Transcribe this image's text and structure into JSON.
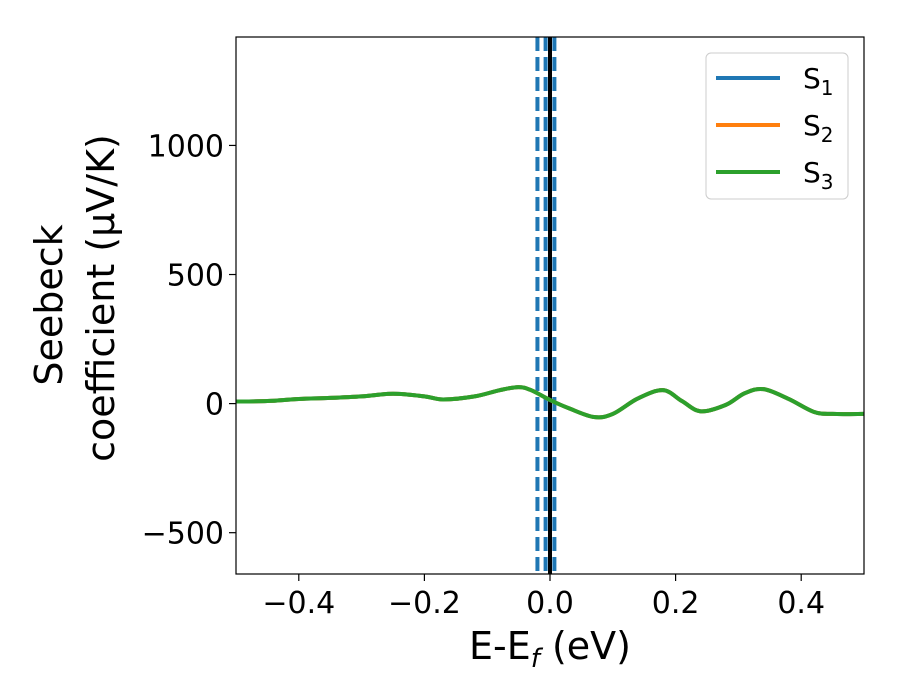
{
  "chart_data": {
    "type": "line",
    "xlabel": "E-E_f (eV)",
    "xlabel_main": "E-E",
    "xlabel_sub": "f",
    "xlabel_unit": " (eV)",
    "ylabel_line1": "Seebeck",
    "ylabel_line2": "coefficient  (μV/K)",
    "xlim": [
      -0.5,
      0.5
    ],
    "ylim": [
      -660,
      1420
    ],
    "xticks": [
      -0.4,
      -0.2,
      0.0,
      0.2,
      0.4
    ],
    "xtick_labels": [
      "−0.4",
      "−0.2",
      "0.0",
      "0.2",
      "0.4"
    ],
    "yticks": [
      -500,
      0,
      500,
      1000
    ],
    "ytick_labels": [
      "−500",
      "0",
      "500",
      "1000"
    ],
    "grid": false,
    "legend_position": "top-right",
    "vertical_lines": [
      {
        "x": -0.02,
        "style": "dashed",
        "color": "#1f77b4"
      },
      {
        "x": -0.007,
        "style": "dashed",
        "color": "#1f77b4"
      },
      {
        "x": 0.007,
        "style": "dashed",
        "color": "#1f77b4"
      },
      {
        "x": 0.0,
        "style": "solid",
        "color": "#000000"
      }
    ],
    "series": [
      {
        "name": "S_1",
        "base": "S",
        "sub": "1",
        "color": "#1f77b4",
        "x": [
          -0.5,
          -0.45,
          -0.4,
          -0.35,
          -0.3,
          -0.25,
          -0.2,
          -0.17,
          -0.12,
          -0.08,
          -0.05,
          -0.03,
          0.0,
          0.03,
          0.07,
          0.1,
          0.14,
          0.18,
          0.21,
          0.24,
          0.28,
          0.31,
          0.34,
          0.38,
          0.42,
          0.45,
          0.5
        ],
        "y": [
          8,
          10,
          18,
          22,
          28,
          38,
          28,
          16,
          28,
          52,
          64,
          52,
          14,
          -18,
          -52,
          -40,
          20,
          52,
          10,
          -30,
          -5,
          40,
          56,
          18,
          -32,
          -40,
          -40
        ]
      },
      {
        "name": "S_2",
        "base": "S",
        "sub": "2",
        "color": "#ff7f0e",
        "x": [
          -0.5,
          -0.45,
          -0.4,
          -0.35,
          -0.3,
          -0.25,
          -0.2,
          -0.17,
          -0.12,
          -0.08,
          -0.05,
          -0.03,
          0.0,
          0.03,
          0.07,
          0.1,
          0.14,
          0.18,
          0.21,
          0.24,
          0.28,
          0.31,
          0.34,
          0.38,
          0.42,
          0.45,
          0.5
        ],
        "y": [
          8,
          10,
          18,
          22,
          28,
          38,
          28,
          16,
          28,
          52,
          64,
          52,
          14,
          -18,
          -52,
          -40,
          20,
          52,
          10,
          -30,
          -5,
          40,
          56,
          18,
          -32,
          -40,
          -40
        ]
      },
      {
        "name": "S_3",
        "base": "S",
        "sub": "3",
        "color": "#2ca02c",
        "x": [
          -0.5,
          -0.45,
          -0.4,
          -0.35,
          -0.3,
          -0.25,
          -0.2,
          -0.17,
          -0.12,
          -0.08,
          -0.05,
          -0.03,
          0.0,
          0.03,
          0.07,
          0.1,
          0.14,
          0.18,
          0.21,
          0.24,
          0.28,
          0.31,
          0.34,
          0.38,
          0.42,
          0.45,
          0.5
        ],
        "y": [
          8,
          10,
          18,
          22,
          28,
          38,
          28,
          16,
          28,
          52,
          64,
          52,
          14,
          -18,
          -52,
          -40,
          20,
          52,
          10,
          -30,
          -5,
          40,
          56,
          18,
          -32,
          -40,
          -40
        ]
      }
    ]
  }
}
